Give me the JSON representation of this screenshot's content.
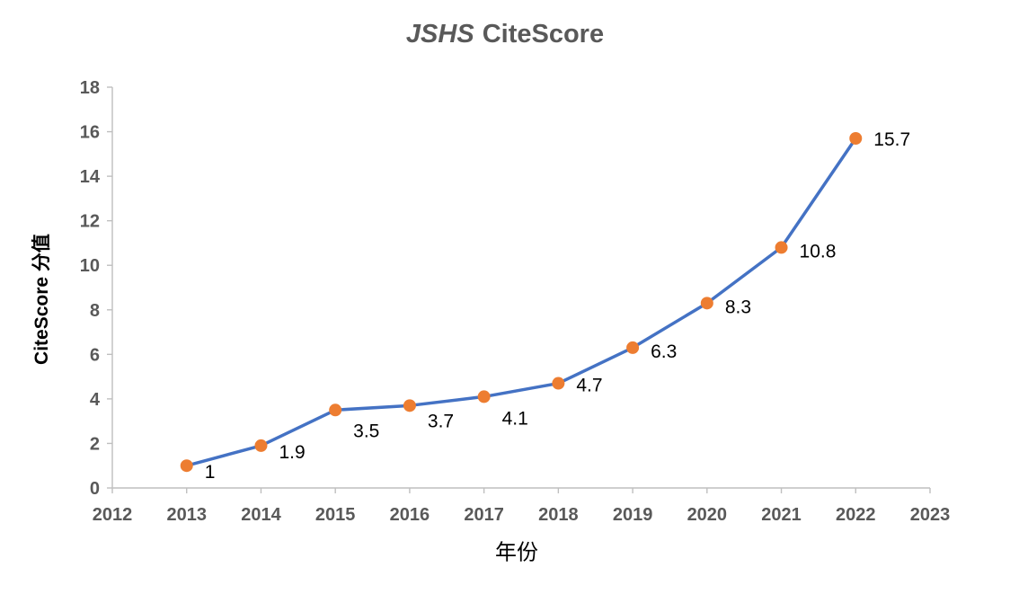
{
  "chart": {
    "title_italic": "JSHS",
    "title_rest": "CiteScore"
  },
  "chart_data": {
    "type": "line",
    "title": "JSHS CiteScore",
    "xlabel": "年份",
    "ylabel": "CiteScore 分值",
    "x": [
      2013,
      2014,
      2015,
      2016,
      2017,
      2018,
      2019,
      2020,
      2021,
      2022
    ],
    "values": [
      1,
      1.9,
      3.5,
      3.7,
      4.1,
      4.7,
      6.3,
      8.3,
      10.8,
      15.7
    ],
    "point_labels": [
      "1",
      "1.9",
      "3.5",
      "3.7",
      "4.1",
      "4.7",
      "6.3",
      "8.3",
      "10.8",
      "15.7"
    ],
    "xlim": [
      2012,
      2023
    ],
    "ylim": [
      0,
      18
    ],
    "x_ticks": [
      2012,
      2013,
      2014,
      2015,
      2016,
      2017,
      2018,
      2019,
      2020,
      2021,
      2022,
      2023
    ],
    "y_ticks": [
      0,
      2,
      4,
      6,
      8,
      10,
      12,
      14,
      16,
      18
    ],
    "grid": false,
    "legend": "none",
    "line_color": "#4472C4",
    "marker_color": "#ED7D31",
    "tick_label_color": "#595959",
    "axis_line_color": "#BFBFBF",
    "data_label_color": "#000000",
    "title_color": "#595959"
  }
}
